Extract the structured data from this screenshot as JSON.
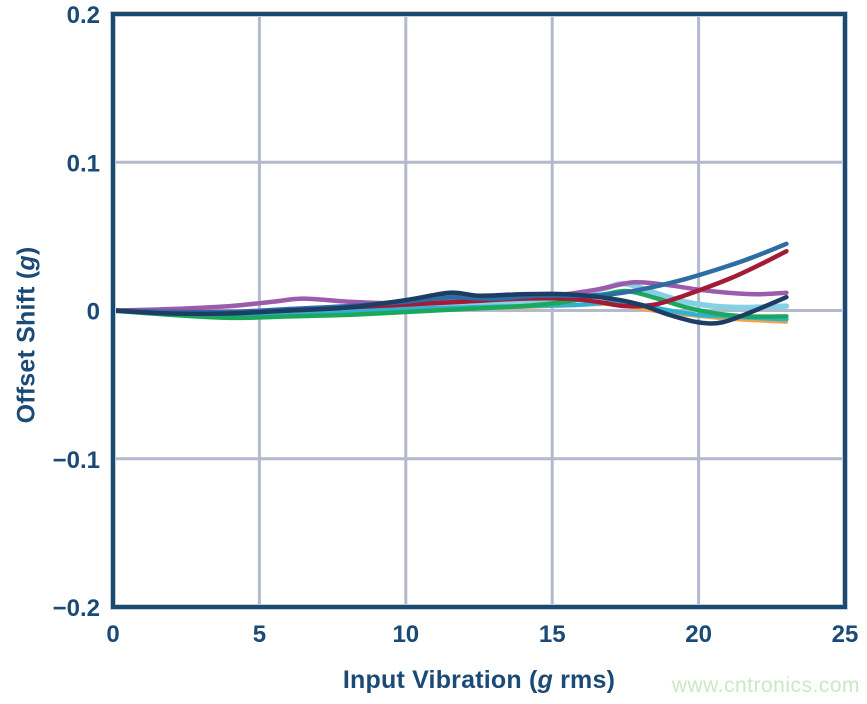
{
  "watermark": "www.cntronics.com",
  "colors": {
    "background": "#ffffff",
    "axis_border": "#1b4a71",
    "axis_border_halo": "#c5cad9",
    "grid": "#b4b9ce",
    "tick_text": "#1a4a75",
    "watermark": "#c9e9c4"
  },
  "chart_data": {
    "type": "line",
    "title": "",
    "xlabel": "Input Vibration (g rms)",
    "xlabel_parts": {
      "prefix": "Input Vibration (",
      "italic": "g",
      "suffix": " rms)"
    },
    "ylabel": "Offset Shift (g)",
    "ylabel_parts": {
      "prefix": "Offset Shift (",
      "italic": "g",
      "suffix": ")"
    },
    "xlim": [
      0,
      25
    ],
    "ylim": [
      -0.2,
      0.2
    ],
    "x_ticks": [
      0,
      5,
      10,
      15,
      20,
      25
    ],
    "x_tick_labels": [
      "0",
      "5",
      "10",
      "15",
      "20",
      "25"
    ],
    "y_ticks": [
      0.2,
      0.1,
      0,
      -0.1,
      -0.2
    ],
    "y_tick_labels": [
      "0.2",
      "0.1",
      "0",
      "−0.1",
      "−0.2"
    ],
    "grid": true,
    "legend": "none",
    "series": [
      {
        "name": "unit-light-cyan",
        "color": "#85d0e2",
        "width": 5.5,
        "points": [
          [
            0,
            0
          ],
          [
            2,
            -0.002
          ],
          [
            4,
            -0.003
          ],
          [
            6,
            -0.002
          ],
          [
            8,
            0.0
          ],
          [
            10,
            0.002
          ],
          [
            12,
            0.004
          ],
          [
            14,
            0.006
          ],
          [
            15.5,
            0.009
          ],
          [
            16.8,
            0.015
          ],
          [
            17.5,
            0.018
          ],
          [
            18.5,
            0.012
          ],
          [
            19.5,
            0.006
          ],
          [
            20.5,
            0.003
          ],
          [
            21.5,
            0.002
          ],
          [
            23,
            0.003
          ]
        ]
      },
      {
        "name": "unit-orange",
        "color": "#f2a44a",
        "width": 3,
        "points": [
          [
            0,
            0
          ],
          [
            2,
            -0.002
          ],
          [
            4,
            -0.004
          ],
          [
            6,
            -0.004
          ],
          [
            8,
            -0.002
          ],
          [
            10,
            0.0
          ],
          [
            12,
            0.001
          ],
          [
            14,
            0.002
          ],
          [
            15.5,
            0.003
          ],
          [
            17,
            0.004
          ],
          [
            18,
            0.001
          ],
          [
            19,
            -0.002
          ],
          [
            20,
            -0.004
          ],
          [
            21,
            -0.006
          ],
          [
            22,
            -0.007
          ],
          [
            23,
            -0.008
          ]
        ]
      },
      {
        "name": "unit-teal",
        "color": "#2fb2d2",
        "width": 4.5,
        "points": [
          [
            0,
            0
          ],
          [
            2,
            -0.002
          ],
          [
            4,
            -0.003
          ],
          [
            6,
            -0.003
          ],
          [
            8,
            -0.001
          ],
          [
            10,
            0.001
          ],
          [
            12,
            0.002
          ],
          [
            14,
            0.003
          ],
          [
            16,
            0.004
          ],
          [
            17.2,
            0.006
          ],
          [
            18,
            0.004
          ],
          [
            19,
            0.0
          ],
          [
            20,
            -0.003
          ],
          [
            21,
            -0.004
          ],
          [
            22,
            -0.005
          ],
          [
            23,
            -0.006
          ]
        ]
      },
      {
        "name": "unit-green",
        "color": "#1ca85c",
        "width": 4.5,
        "points": [
          [
            0,
            0
          ],
          [
            2,
            -0.003
          ],
          [
            4,
            -0.005
          ],
          [
            6,
            -0.004
          ],
          [
            8,
            -0.003
          ],
          [
            10,
            -0.001
          ],
          [
            12,
            0.001
          ],
          [
            14,
            0.003
          ],
          [
            15.5,
            0.006
          ],
          [
            16.8,
            0.011
          ],
          [
            17.6,
            0.013
          ],
          [
            18.6,
            0.008
          ],
          [
            19.6,
            0.002
          ],
          [
            20.6,
            -0.002
          ],
          [
            21.6,
            -0.004
          ],
          [
            23,
            -0.004
          ]
        ]
      },
      {
        "name": "unit-purple",
        "color": "#9d5cab",
        "width": 4.5,
        "points": [
          [
            0,
            0
          ],
          [
            2,
            0.001
          ],
          [
            4,
            0.003
          ],
          [
            5.5,
            0.006
          ],
          [
            6.5,
            0.008
          ],
          [
            8,
            0.006
          ],
          [
            9.5,
            0.005
          ],
          [
            11,
            0.006
          ],
          [
            13,
            0.008
          ],
          [
            15,
            0.01
          ],
          [
            16.5,
            0.014
          ],
          [
            17.8,
            0.019
          ],
          [
            19,
            0.017
          ],
          [
            20,
            0.014
          ],
          [
            21,
            0.012
          ],
          [
            22,
            0.011
          ],
          [
            23,
            0.012
          ]
        ]
      },
      {
        "name": "unit-crimson",
        "color": "#a21c38",
        "width": 4.5,
        "points": [
          [
            0,
            0
          ],
          [
            2,
            -0.001
          ],
          [
            4,
            -0.001
          ],
          [
            6,
            0.0
          ],
          [
            8,
            0.002
          ],
          [
            10,
            0.004
          ],
          [
            12,
            0.006
          ],
          [
            14,
            0.008
          ],
          [
            15.5,
            0.008
          ],
          [
            16.5,
            0.006
          ],
          [
            17.5,
            0.003
          ],
          [
            18.5,
            0.004
          ],
          [
            19.5,
            0.01
          ],
          [
            21,
            0.021
          ],
          [
            22,
            0.03
          ],
          [
            23,
            0.04
          ]
        ]
      },
      {
        "name": "unit-steel-blue",
        "color": "#2e6da4",
        "width": 4.5,
        "points": [
          [
            0,
            0
          ],
          [
            2,
            -0.001
          ],
          [
            4,
            -0.001
          ],
          [
            6,
            0.001
          ],
          [
            8,
            0.003
          ],
          [
            10,
            0.006
          ],
          [
            11.5,
            0.009
          ],
          [
            13,
            0.008
          ],
          [
            14.5,
            0.01
          ],
          [
            16,
            0.01
          ],
          [
            17,
            0.011
          ],
          [
            18,
            0.014
          ],
          [
            19.5,
            0.021
          ],
          [
            21,
            0.03
          ],
          [
            22,
            0.037
          ],
          [
            23,
            0.045
          ]
        ]
      },
      {
        "name": "unit-navy",
        "color": "#1c3e64",
        "width": 4.5,
        "points": [
          [
            0,
            0
          ],
          [
            2,
            -0.002
          ],
          [
            4,
            -0.002
          ],
          [
            6,
            0.0
          ],
          [
            8,
            0.002
          ],
          [
            10,
            0.007
          ],
          [
            11.5,
            0.012
          ],
          [
            12.5,
            0.01
          ],
          [
            14,
            0.011
          ],
          [
            15.5,
            0.011
          ],
          [
            17,
            0.008
          ],
          [
            18,
            0.004
          ],
          [
            19,
            -0.003
          ],
          [
            20,
            -0.008
          ],
          [
            20.8,
            -0.008
          ],
          [
            21.8,
            -0.001
          ],
          [
            23,
            0.009
          ]
        ]
      }
    ]
  }
}
